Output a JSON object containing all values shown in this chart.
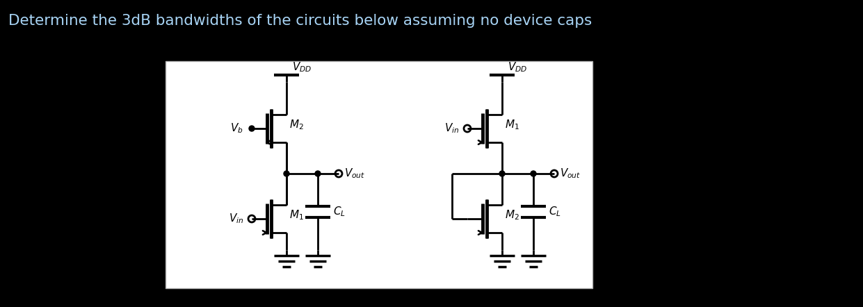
{
  "title": "Determine the 3dB bandwidths of the circuits below assuming no device caps",
  "title_color": "#a8d4f5",
  "title_fontsize": 15.5,
  "background_color": "#000000",
  "box_facecolor": "#ffffff",
  "box_edgecolor": "#aaaaaa",
  "line_color": "#000000",
  "fig_width": 12.41,
  "fig_height": 4.42,
  "dpi": 100
}
